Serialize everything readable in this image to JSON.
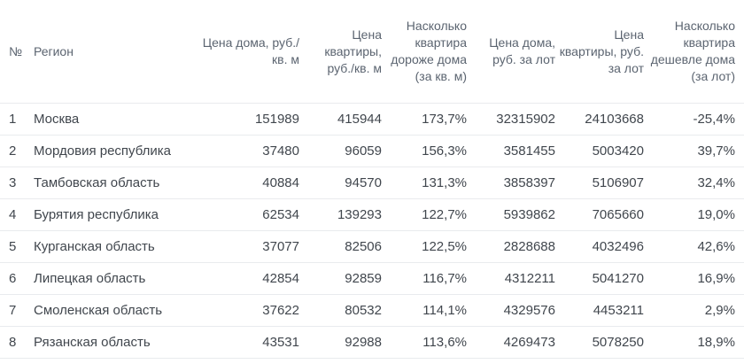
{
  "chart_data": {
    "type": "table",
    "title": "",
    "columns": [
      {
        "label": "№",
        "align": "left"
      },
      {
        "label": "Регион",
        "align": "left"
      },
      {
        "label": "Цена дома, руб./кв. м",
        "align": "right"
      },
      {
        "label": "Цена квартиры, руб./кв. м",
        "align": "right"
      },
      {
        "label": "Насколько квартира дороже дома (за кв. м)",
        "align": "right"
      },
      {
        "label": "Цена дома, руб. за лот",
        "align": "right"
      },
      {
        "label": "Цена квартиры, руб. за лот",
        "align": "right"
      },
      {
        "label": "Насколько квартира дешевле дома (за лот)",
        "align": "right"
      }
    ],
    "rows": [
      [
        "1",
        "Москва",
        "151989",
        "415944",
        "173,7%",
        "32315902",
        "24103668",
        "-25,4%"
      ],
      [
        "2",
        "Мордовия республика",
        "37480",
        "96059",
        "156,3%",
        "3581455",
        "5003420",
        "39,7%"
      ],
      [
        "3",
        "Тамбовская область",
        "40884",
        "94570",
        "131,3%",
        "3858397",
        "5106907",
        "32,4%"
      ],
      [
        "4",
        "Бурятия республика",
        "62534",
        "139293",
        "122,7%",
        "5939862",
        "7065660",
        "19,0%"
      ],
      [
        "5",
        "Курганская область",
        "37077",
        "82506",
        "122,5%",
        "2828688",
        "4032496",
        "42,6%"
      ],
      [
        "6",
        "Липецкая область",
        "42854",
        "92859",
        "116,7%",
        "4312211",
        "5041270",
        "16,9%"
      ],
      [
        "7",
        "Смоленская область",
        "37622",
        "80532",
        "114,1%",
        "4329576",
        "4453211",
        "2,9%"
      ],
      [
        "8",
        "Рязанская область",
        "43531",
        "92988",
        "113,6%",
        "4269473",
        "5078250",
        "18,9%"
      ]
    ]
  },
  "colors": {
    "background": "#ffffff",
    "header_text": "#5b6470",
    "body_text": "#40464d",
    "divider": "#e9ebee"
  }
}
